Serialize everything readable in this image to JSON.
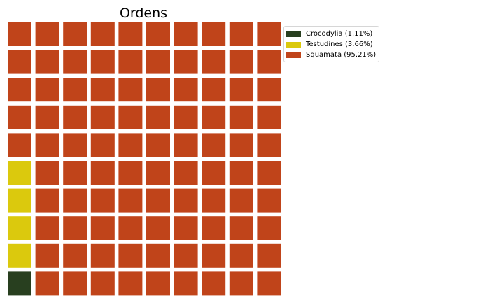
{
  "chart_data": {
    "type": "waffle",
    "title": "Ordens",
    "rows": 10,
    "columns": 10,
    "categories": [
      {
        "name": "Crocodylia",
        "label": "Crocodylia (1.11%)",
        "percent": 1.11,
        "squares": 1,
        "color": "#283f1f"
      },
      {
        "name": "Testudines",
        "label": "Testudines (3.66%)",
        "percent": 3.66,
        "squares": 4,
        "color": "#dbc90d"
      },
      {
        "name": "Squamata",
        "label": "Squamata (95.21%)",
        "percent": 95.21,
        "squares": 95,
        "color": "#c0441a"
      }
    ],
    "legend_position": "top-right"
  }
}
